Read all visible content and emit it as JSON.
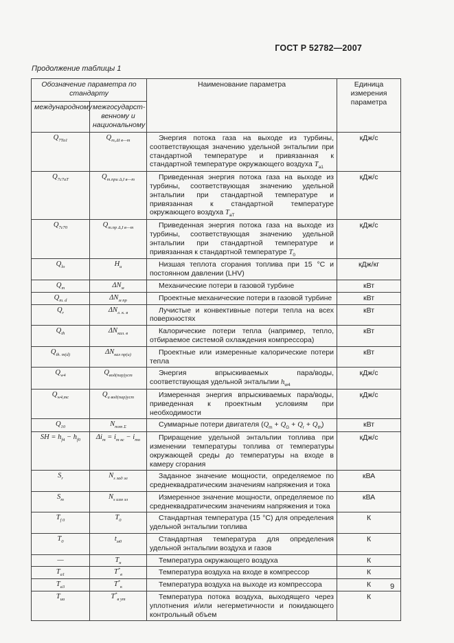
{
  "page": {
    "header": "ГОСТ Р 52782—2007",
    "caption": "Продолжение таблицы 1",
    "page_number": "9"
  },
  "table": {
    "header": {
      "designation_group": "Обозначение параметра по стандарту",
      "col_international": "международному",
      "col_interstate": "межгосударст-\nвенному и\nнациональному",
      "col_name": "Наименование параметра",
      "col_unit": "Единица измерения параметра"
    },
    "rows": [
      {
        "intl": "Q~7Та1~",
        "inter": "Q~т,ΔI в—т~",
        "name": "Энергия потока газа на выходе из турбины, соответствующая значению удельной энтальпии при стандартной температуре и привязанная к стандартной температуре окружающего воздуха `T`~а1~",
        "unit": "кДж/с"
      },
      {
        "intl": "Q~7с7аТ~",
        "inter": "Q~т.при Δ,I в—т~",
        "name": "Приведенная энергия потока газа на выходе из турбины, соответствующая значению удельной энтальпии при стандартной температуре и привязанная к стандартной температуре окружающего воздуха `T`~аТ~",
        "unit": "кДж/с"
      },
      {
        "intl": "Q~7с70~",
        "inter": "Q~т.пр Δ,I в—т~",
        "name": "Приведенная энергия потока газа на выходе из турбины, соответствующая значению удельной энтальпии при стандартной температуре и привязанная к стандартной температуре `T`~0~",
        "unit": "кДж/с"
      },
      {
        "intl": "Q~lo~",
        "inter": "H~u~",
        "name": "Низшая теплота сгорания топлива при 15 °С и постоянном давлении (LHV)",
        "unit": "кДж/кг"
      },
      {
        "intl": "Q~m~",
        "inter": "ΔN~м~",
        "name": "Механические потери в газовой турбине",
        "unit": "кВт"
      },
      {
        "intl": "Q~m. d~",
        "inter": "ΔN~м пр~",
        "name": "Проектные механические потери в газовой турбине",
        "unit": "кВт"
      },
      {
        "intl": "Q~r~",
        "inter": "ΔN~л. к. в~",
        "name": "Лучистые и конвективные потери тепла на всех поверхностях",
        "unit": "кВт"
      },
      {
        "intl": "Q~th~",
        "inter": "ΔN~кал. в~",
        "name": "Калорические потери тепла (например, тепло, отбираемое системой охлаждения компрессора)",
        "unit": "кВт"
      },
      {
        "intl": "Q~th. m(d)~",
        "inter": "ΔN~кал пр(и)~",
        "name": "Проектные или измеренные калорические потери тепла",
        "unit": "кВт"
      },
      {
        "intl": "Q~w4~",
        "inter": "Q~вод(пар)уст~",
        "name": "Энергия впрыскиваемых пара/воды, соответствующая удельной энтальпии `h`~w4~",
        "unit": "кДж/с"
      },
      {
        "intl": "Q~w4,mc~",
        "inter": "Q~и вод(пар)уст~",
        "name": "Измеренная энергия впрыскиваемых пара/воды, приведенная к проектным условиям при необходимости",
        "unit": "кДж/с"
      },
      {
        "intl": "Q~10~",
        "inter": "N~пот Σ~",
        "name": "Суммарные потери двигателя (`Q`~m~ + `Q`~G~ + `Q`~r~ + `Q`~th~)",
        "unit": "кВт"
      },
      {
        "intl": "SH = h~f4~ − h~f0~",
        "inter": "Δi~т~ = i~т кс~ − i~то~",
        "name": "Приращение удельной энтальпии топлива при изменении температуры топлива от температуры окружающей среды до температуры на входе в камеру сгорания",
        "unit": "кДж/с"
      },
      {
        "intl": "S~r~",
        "inter": "N~s зад эл~",
        "name": "Заданное значение мощности, определяемое по среднеквадратическим значениям напряжения и тока",
        "unit": "кВА"
      },
      {
        "intl": "S~m~",
        "inter": "N~s изм эл~",
        "name": "Измеренное значение мощности, определяемое по среднеквадратическим значениям напряжения и тока",
        "unit": "кВА"
      },
      {
        "intl": "T~f 0~",
        "inter": "T~0~",
        "name": "Стандартная температура (15 °С) для определения удельной энтальпии топлива",
        "unit": "К"
      },
      {
        "intl": "T~0~",
        "inter": "t~м0~",
        "name": "Стандартная температура для определения удельной энтальпии воздуха и газов",
        "unit": "К"
      },
      {
        "intl": "—",
        "inter": "T~н~",
        "name": "Температура окружающего воздуха",
        "unit": "К"
      },
      {
        "intl": "T~а1~",
        "inter": "T^*^~в~",
        "name": "Температура воздуха на входе в компрессор",
        "unit": "К"
      },
      {
        "intl": "T~а3~",
        "inter": "T^*^~к~",
        "name": "Температура воздуха на выходе из компрессора",
        "unit": "К"
      },
      {
        "intl": "T~uа~",
        "inter": "T^*^~в ут~",
        "name": "Температура потока воздуха, выходящего через уплотнения и/или негерметичности и покидающего контрольный объем",
        "unit": "К"
      }
    ]
  }
}
